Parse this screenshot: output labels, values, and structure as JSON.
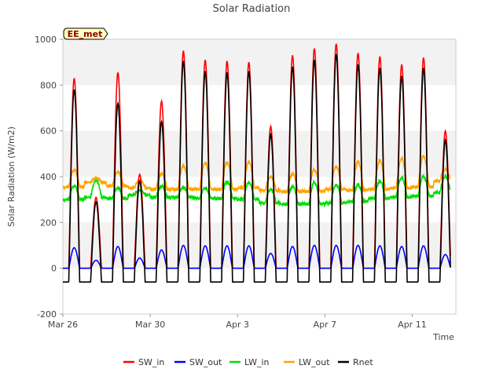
{
  "chart_data": {
    "type": "line",
    "title": "Solar Radiation",
    "site_label": "EE_met",
    "xlabel": "Time",
    "ylabel": "Solar Radiation (W/m2)",
    "ylim": [
      -200,
      1000
    ],
    "yticks": [
      -200,
      0,
      200,
      400,
      600,
      800,
      1000
    ],
    "xlim": [
      "2024-03-26",
      "2024-04-13"
    ],
    "xticks": [
      {
        "value": "2024-03-26",
        "label": "Mar 26"
      },
      {
        "value": "2024-03-30",
        "label": "Mar 30"
      },
      {
        "value": "2024-04-03",
        "label": "Apr 3"
      },
      {
        "value": "2024-04-07",
        "label": "Apr 7"
      },
      {
        "value": "2024-04-11",
        "label": "Apr 11"
      }
    ],
    "grid": "horizontal bands",
    "legend_position": "bottom",
    "days": [
      "2024-03-26",
      "2024-03-27",
      "2024-03-28",
      "2024-03-29",
      "2024-03-30",
      "2024-03-31",
      "2024-04-01",
      "2024-04-02",
      "2024-04-03",
      "2024-04-04",
      "2024-04-05",
      "2024-04-06",
      "2024-04-07",
      "2024-04-08",
      "2024-04-09",
      "2024-04-10",
      "2024-04-11",
      "2024-04-12"
    ],
    "series": [
      {
        "name": "SW_in",
        "color": "#ff0000",
        "daily_peak": [
          830,
          310,
          855,
          410,
          730,
          950,
          910,
          905,
          900,
          620,
          930,
          960,
          980,
          940,
          925,
          890,
          920,
          600
        ]
      },
      {
        "name": "SW_out",
        "color": "#0000ff",
        "daily_peak": [
          90,
          35,
          95,
          45,
          80,
          100,
          98,
          98,
          98,
          65,
          95,
          100,
          100,
          100,
          98,
          95,
          98,
          60
        ]
      },
      {
        "name": "LW_in",
        "color": "#00dd00",
        "night_level": [
          300,
          310,
          305,
          320,
          310,
          310,
          305,
          305,
          300,
          285,
          280,
          280,
          285,
          290,
          305,
          310,
          315,
          330
        ],
        "day_level": [
          360,
          385,
          350,
          340,
          360,
          355,
          350,
          380,
          375,
          345,
          360,
          375,
          365,
          365,
          380,
          395,
          400,
          400
        ]
      },
      {
        "name": "LW_out",
        "color": "#ffa500",
        "night_level": [
          355,
          375,
          360,
          350,
          345,
          345,
          345,
          345,
          350,
          340,
          335,
          335,
          345,
          340,
          345,
          350,
          355,
          380
        ],
        "day_level": [
          430,
          395,
          420,
          385,
          415,
          450,
          460,
          465,
          465,
          400,
          415,
          430,
          445,
          465,
          470,
          480,
          490,
          430
        ]
      },
      {
        "name": "Rnet",
        "color": "#000000",
        "daily_peak": [
          780,
          290,
          720,
          380,
          640,
          905,
          860,
          855,
          860,
          585,
          880,
          910,
          935,
          890,
          875,
          840,
          875,
          560
        ],
        "night_level": -60
      }
    ]
  }
}
